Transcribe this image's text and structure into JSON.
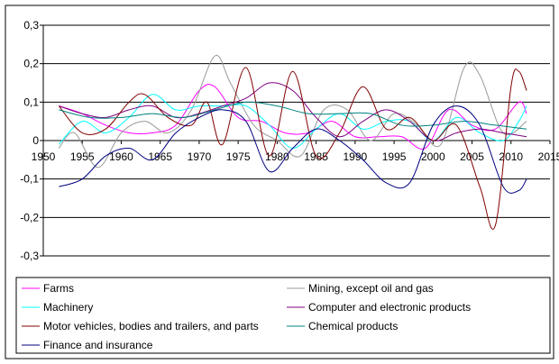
{
  "chart_data": {
    "type": "line",
    "title": "",
    "xlabel": "",
    "ylabel": "",
    "xlim": [
      1950,
      2015
    ],
    "ylim": [
      -0.3,
      0.3
    ],
    "x_ticks": [
      "1950",
      "1955",
      "1960",
      "1965",
      "1970",
      "1975",
      "1980",
      "1985",
      "1990",
      "1995",
      "2000",
      "2005",
      "2010",
      "2015"
    ],
    "y_ticks": [
      "0,3",
      "0,2",
      "0,1",
      "0",
      "-0,1",
      "-0,2",
      "-0,3"
    ],
    "grid": "horizontal",
    "legend_position": "bottom",
    "series": [
      {
        "name": "Farms",
        "color": "#ff00ff",
        "x": [
          1952,
          1955,
          1958,
          1961,
          1964,
          1967,
          1970,
          1972,
          1975,
          1978,
          1981,
          1984,
          1987,
          1990,
          1993,
          1996,
          1999,
          2002,
          2005,
          2008,
          2011,
          2012
        ],
        "y": [
          0.09,
          0.07,
          0.04,
          0.02,
          0.02,
          0.04,
          0.13,
          0.14,
          0.06,
          0.05,
          0.02,
          0.02,
          0.05,
          0.01,
          0.01,
          0.01,
          -0.02,
          0.08,
          0.04,
          0.03,
          0.1,
          0.07
        ]
      },
      {
        "name": "Mining, except oil and gas",
        "color": "#999999",
        "x": [
          1952,
          1954,
          1957,
          1960,
          1963,
          1966,
          1969,
          1972,
          1974,
          1977,
          1980,
          1983,
          1986,
          1989,
          1992,
          1995,
          1998,
          2001,
          2004,
          2006,
          2009,
          2012
        ],
        "y": [
          -0.02,
          0.02,
          -0.07,
          0.02,
          0.05,
          0.02,
          0.08,
          0.22,
          0.15,
          0.04,
          0.0,
          -0.04,
          0.08,
          0.08,
          0.0,
          0.07,
          0.04,
          -0.01,
          0.19,
          0.17,
          0.02,
          0.05
        ]
      },
      {
        "name": "Machinery",
        "color": "#00ffff",
        "x": [
          1952,
          1955,
          1958,
          1961,
          1964,
          1967,
          1970,
          1973,
          1976,
          1979,
          1982,
          1985,
          1988,
          1991,
          1994,
          1997,
          2000,
          2003,
          2006,
          2009,
          2011,
          2012
        ],
        "y": [
          -0.01,
          0.05,
          0.02,
          0.06,
          0.12,
          0.08,
          0.09,
          0.09,
          0.09,
          0.04,
          -0.02,
          0.03,
          0.07,
          0.03,
          0.05,
          0.05,
          0.0,
          0.06,
          0.02,
          0.0,
          0.05,
          0.09
        ]
      },
      {
        "name": "Computer and electronic products",
        "color": "#800080",
        "x": [
          1952,
          1955,
          1958,
          1961,
          1964,
          1967,
          1970,
          1973,
          1976,
          1979,
          1982,
          1985,
          1988,
          1991,
          1994,
          1997,
          2000,
          2003,
          2006,
          2009,
          2012
        ],
        "y": [
          0.09,
          0.07,
          0.06,
          0.08,
          0.09,
          0.06,
          0.07,
          0.09,
          0.11,
          0.15,
          0.13,
          0.06,
          0.01,
          0.05,
          0.08,
          0.05,
          0.0,
          0.02,
          0.03,
          0.02,
          0.01
        ]
      },
      {
        "name": "Motor vehicles, bodies and trailers, and parts",
        "color": "#800000",
        "x": [
          1952,
          1955,
          1958,
          1961,
          1963,
          1966,
          1969,
          1971,
          1973,
          1976,
          1979,
          1982,
          1985,
          1988,
          1991,
          1994,
          1997,
          2000,
          2003,
          2006,
          2008,
          2010,
          2011,
          2012
        ],
        "y": [
          0.09,
          0.02,
          0.03,
          0.1,
          0.12,
          0.06,
          0.04,
          0.1,
          -0.01,
          0.19,
          -0.04,
          0.18,
          -0.04,
          0.02,
          0.14,
          0.03,
          0.06,
          0.0,
          0.04,
          -0.12,
          -0.22,
          0.14,
          0.18,
          0.13
        ]
      },
      {
        "name": "Chemical products",
        "color": "#008080",
        "x": [
          1952,
          1956,
          1960,
          1964,
          1968,
          1972,
          1976,
          1980,
          1984,
          1988,
          1992,
          1996,
          2000,
          2004,
          2008,
          2012
        ],
        "y": [
          0.08,
          0.06,
          0.06,
          0.07,
          0.06,
          0.08,
          0.1,
          0.09,
          0.07,
          0.07,
          0.07,
          0.04,
          0.04,
          0.05,
          0.04,
          0.03
        ]
      },
      {
        "name": "Finance and insurance",
        "color": "#000080",
        "x": [
          1952,
          1955,
          1958,
          1961,
          1964,
          1967,
          1970,
          1973,
          1976,
          1979,
          1982,
          1985,
          1988,
          1991,
          1994,
          1997,
          2000,
          2003,
          2006,
          2009,
          2011,
          2012
        ],
        "y": [
          -0.12,
          -0.1,
          -0.04,
          -0.02,
          -0.05,
          0.02,
          0.06,
          0.08,
          0.05,
          -0.08,
          -0.02,
          0.03,
          0.0,
          -0.05,
          -0.11,
          -0.11,
          0.04,
          0.09,
          0.04,
          -0.12,
          -0.13,
          -0.1
        ]
      }
    ]
  }
}
